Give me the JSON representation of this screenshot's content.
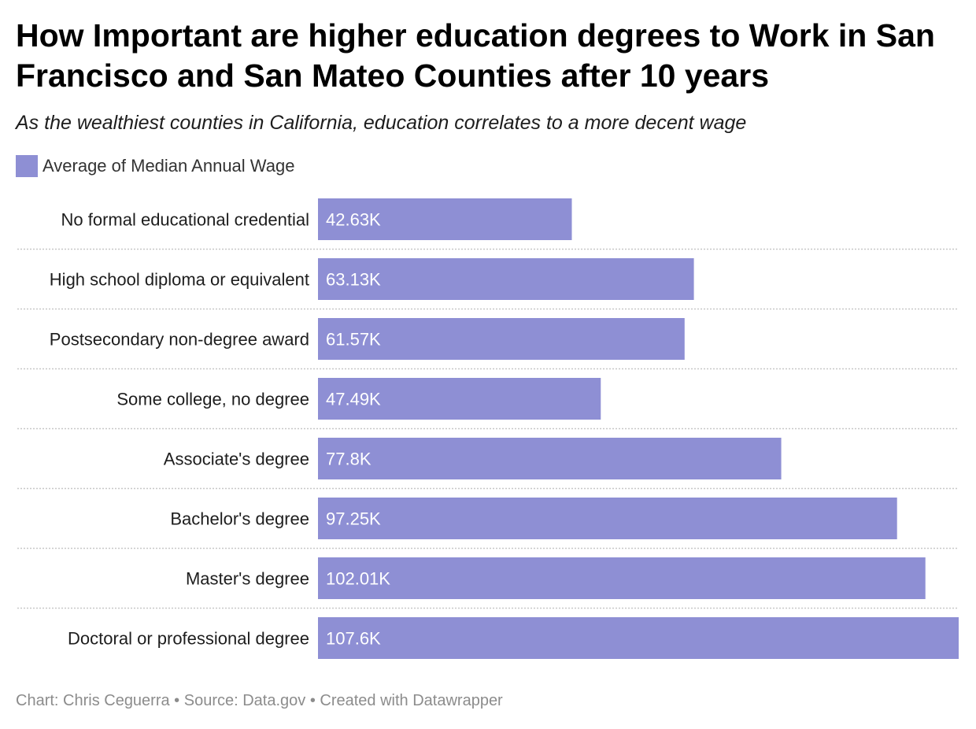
{
  "header": {
    "title": "How Important are higher education degrees to Work in San Francisco and San Mateo Counties after 10 years",
    "subtitle": "As the wealthiest counties in California, education correlates to a more decent wage"
  },
  "legend": {
    "label": "Average of Median Annual Wage",
    "color": "#8e8fd4"
  },
  "chart_data": {
    "type": "bar",
    "orientation": "horizontal",
    "categories": [
      "No formal educational credential",
      "High school diploma or equivalent",
      "Postsecondary non-degree award",
      "Some college, no degree",
      "Associate's degree",
      "Bachelor's degree",
      "Master's degree",
      "Doctoral or professional degree"
    ],
    "series": [
      {
        "name": "Average of Median Annual Wage",
        "values": [
          42.63,
          63.13,
          61.57,
          47.49,
          77.8,
          97.25,
          102.01,
          107.6
        ]
      }
    ],
    "value_labels": [
      "42.63K",
      "63.13K",
      "61.57K",
      "47.49K",
      "77.8K",
      "97.25K",
      "102.01K",
      "107.6K"
    ],
    "xlim": [
      0,
      107.6
    ],
    "grid": false,
    "legend_position": "top-left",
    "bar_color": "#8e8fd4",
    "separator_color": "#c8c8c8"
  },
  "footer": {
    "credit": "Chart: Chris Ceguerra • Source: Data.gov • Created with Datawrapper"
  }
}
